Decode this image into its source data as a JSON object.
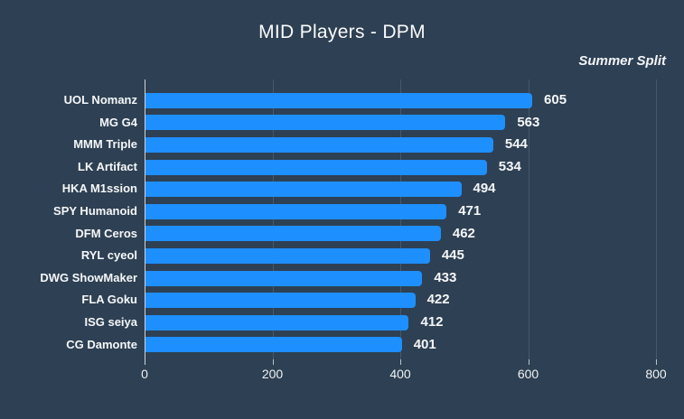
{
  "header": {
    "title": "MID Players - DPM",
    "subtitle": "Summer Split"
  },
  "chart_data": {
    "type": "bar",
    "orientation": "horizontal",
    "title": "MID Players - DPM",
    "subtitle": "Summer Split",
    "categories": [
      "UOL Nomanz",
      "MG G4",
      "MMM Triple",
      "LK Artifact",
      "HKA M1ssion",
      "SPY Humanoid",
      "DFM Ceros",
      "RYL cyeol",
      "DWG ShowMaker",
      "FLA Goku",
      "ISG seiya",
      "CG Damonte"
    ],
    "values": [
      605,
      563,
      544,
      534,
      494,
      471,
      462,
      445,
      433,
      422,
      412,
      401
    ],
    "value_labels_shown": true,
    "xlabel": "",
    "ylabel": "",
    "xlim": [
      0,
      800
    ],
    "x_ticks": [
      0,
      200,
      400,
      600,
      800
    ],
    "grid": "vertical",
    "legend": "none",
    "colors": {
      "bar": "#1e8fff",
      "background": "#2e4053",
      "gridline": "#47586b",
      "axis_line": "#cdd5db",
      "text": "#f5f7f8"
    }
  }
}
